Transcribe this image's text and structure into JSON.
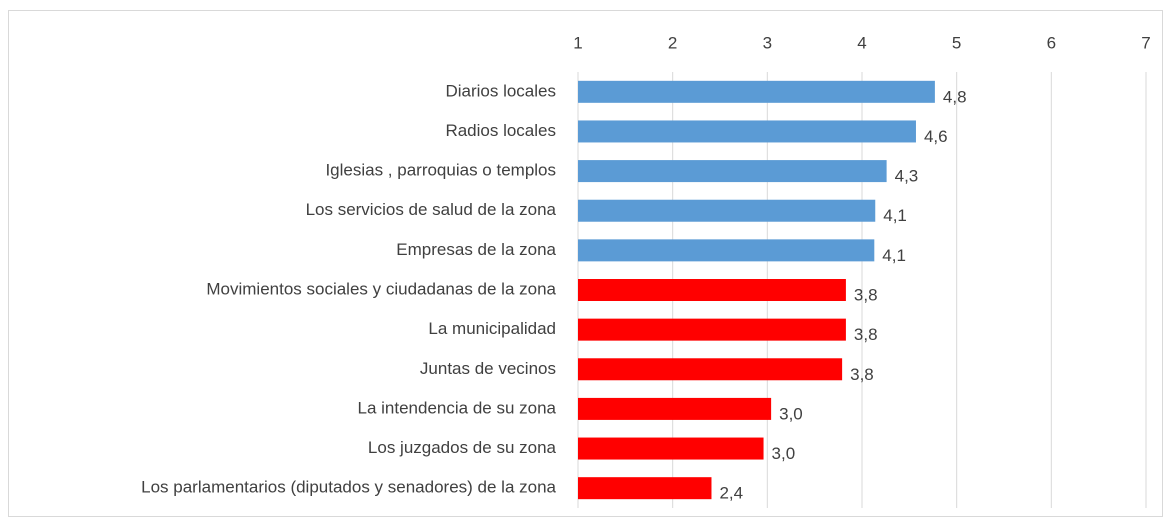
{
  "chart_data": {
    "type": "hbar",
    "categories": [
      "Diarios locales",
      "Radios locales",
      "Iglesias , parroquias o templos",
      "Los servicios de salud de la zona",
      "Empresas de la zona",
      "Movimientos sociales y ciudadanas de la zona",
      "La municipalidad",
      "Juntas de vecinos",
      "La intendencia de su zona",
      "Los juzgados de su zona",
      "Los parlamentarios (diputados y senadores) de la zona"
    ],
    "values": [
      4.77,
      4.57,
      4.26,
      4.14,
      4.13,
      3.83,
      3.83,
      3.79,
      3.04,
      2.96,
      2.41
    ],
    "value_labels": [
      "4,8",
      "4,6",
      "4,3",
      "4,1",
      "4,1",
      "3,8",
      "3,8",
      "3,8",
      "3,0",
      "3,0",
      "2,4"
    ],
    "colors": [
      "#5b9bd5",
      "#5b9bd5",
      "#5b9bd5",
      "#5b9bd5",
      "#5b9bd5",
      "#ff0000",
      "#ff0000",
      "#ff0000",
      "#ff0000",
      "#ff0000",
      "#ff0000"
    ],
    "xlim": [
      1,
      7
    ],
    "xticks": [
      1,
      2,
      3,
      4,
      5,
      6,
      7
    ],
    "grid": true
  }
}
